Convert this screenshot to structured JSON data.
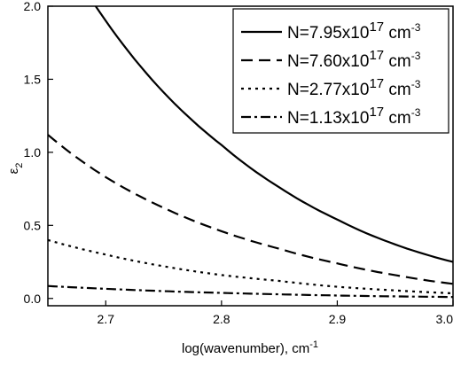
{
  "chart_data": {
    "type": "line",
    "xlabel": "log(wavenumber), cm",
    "xlabel_sup": "-1",
    "ylabel": "ε",
    "ylabel_sub": "2",
    "xlim": [
      2.65,
      3.0
    ],
    "ylim": [
      -0.05,
      2.0
    ],
    "xticks": [
      2.7,
      2.8,
      2.9,
      3.0
    ],
    "xtick_labels": [
      "2.7",
      "2.8",
      "2.9",
      "3.0"
    ],
    "yticks": [
      0.0,
      0.5,
      1.0,
      1.5,
      2.0
    ],
    "ytick_labels": [
      "0.0",
      "0.5",
      "1.0",
      "1.5",
      "2.0"
    ],
    "grid": false,
    "legend_position": "top-right",
    "x": [
      2.65,
      2.7,
      2.75,
      2.8,
      2.85,
      2.9,
      2.95,
      3.0
    ],
    "series": [
      {
        "name_base": "N=7.95x10",
        "name_exp": "17",
        "name_unit": " cm",
        "name_unit_exp": "-3",
        "style": "solid",
        "values": [
          2.55,
          1.9,
          1.41,
          1.05,
          0.76,
          0.54,
          0.37,
          0.25
        ]
      },
      {
        "name_base": "N=7.60x10",
        "name_exp": "17",
        "name_unit": " cm",
        "name_unit_exp": "-3",
        "style": "dash",
        "values": [
          1.12,
          0.83,
          0.62,
          0.46,
          0.34,
          0.24,
          0.16,
          0.1
        ]
      },
      {
        "name_base": "N=2.77x10",
        "name_exp": "17",
        "name_unit": " cm",
        "name_unit_exp": "-3",
        "style": "dot",
        "values": [
          0.4,
          0.3,
          0.22,
          0.16,
          0.12,
          0.08,
          0.055,
          0.035
        ]
      },
      {
        "name_base": "N=1.13x10",
        "name_exp": "17",
        "name_unit": " cm",
        "name_unit_exp": "-3",
        "style": "dashdot",
        "values": [
          0.085,
          0.066,
          0.05,
          0.038,
          0.028,
          0.02,
          0.014,
          0.01
        ]
      }
    ]
  }
}
